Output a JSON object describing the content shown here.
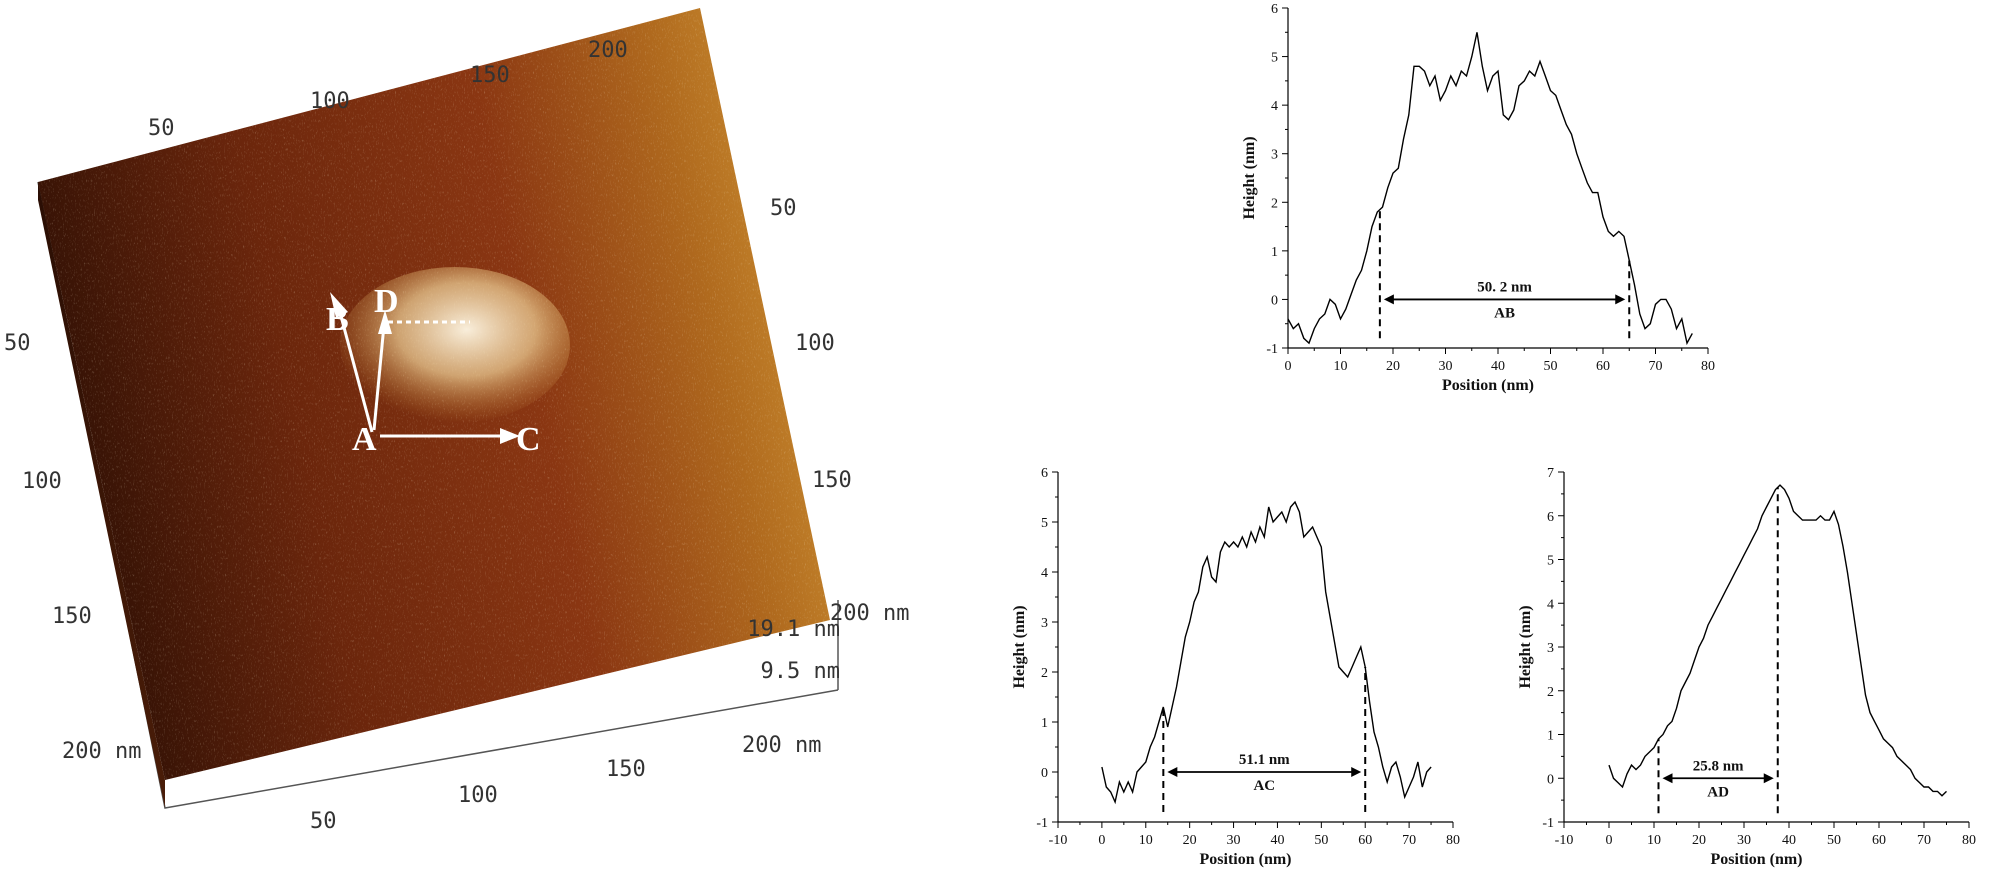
{
  "afm_image": {
    "top_ticks": [
      "50",
      "100",
      "150",
      "200"
    ],
    "right_ticks": [
      "50",
      "100",
      "150",
      "200 nm"
    ],
    "left_ticks": [
      "50",
      "100",
      "150",
      "200 nm"
    ],
    "bottom_ticks": [
      "50",
      "100",
      "150",
      "200 nm"
    ],
    "z_ticks": [
      "19.1 nm",
      "9.5 nm"
    ],
    "markers": {
      "A": "A",
      "B": "B",
      "C": "C",
      "D": "D"
    },
    "colors": {
      "dark": "#3a1406",
      "mid": "#7a2d0e",
      "light": "#c97f22",
      "bright": "#fff3d6"
    }
  },
  "chart_data": [
    {
      "type": "line",
      "name": "AB",
      "xlabel": "Position (nm)",
      "ylabel": "Height (nm)",
      "xlim": [
        0,
        80
      ],
      "ylim": [
        -1,
        6
      ],
      "xticks": [
        0,
        10,
        20,
        30,
        40,
        50,
        60,
        70,
        80
      ],
      "yticks": [
        -1,
        0,
        1,
        2,
        3,
        4,
        5,
        6
      ],
      "x": [
        0,
        1,
        2,
        3,
        4,
        5,
        6,
        7,
        8,
        9,
        10,
        11,
        12,
        13,
        14,
        15,
        16,
        17,
        18,
        19,
        20,
        21,
        22,
        23,
        24,
        25,
        26,
        27,
        28,
        29,
        30,
        31,
        32,
        33,
        34,
        35,
        36,
        37,
        38,
        39,
        40,
        41,
        42,
        43,
        44,
        45,
        46,
        47,
        48,
        49,
        50,
        51,
        52,
        53,
        54,
        55,
        56,
        57,
        58,
        59,
        60,
        61,
        62,
        63,
        64,
        65,
        66,
        67,
        68,
        69,
        70,
        71,
        72,
        73,
        74,
        75,
        76,
        77
      ],
      "y": [
        -0.4,
        -0.6,
        -0.5,
        -0.8,
        -0.9,
        -0.6,
        -0.4,
        -0.3,
        0.0,
        -0.1,
        -0.4,
        -0.2,
        0.1,
        0.4,
        0.6,
        1.0,
        1.5,
        1.8,
        1.9,
        2.3,
        2.6,
        2.7,
        3.3,
        3.8,
        4.8,
        4.8,
        4.7,
        4.4,
        4.6,
        4.1,
        4.3,
        4.6,
        4.4,
        4.7,
        4.6,
        5.0,
        5.5,
        4.8,
        4.3,
        4.6,
        4.7,
        3.8,
        3.7,
        3.9,
        4.4,
        4.5,
        4.7,
        4.6,
        4.9,
        4.6,
        4.3,
        4.2,
        3.9,
        3.6,
        3.4,
        3.0,
        2.7,
        2.4,
        2.2,
        2.2,
        1.7,
        1.4,
        1.3,
        1.4,
        1.3,
        0.8,
        0.3,
        -0.3,
        -0.6,
        -0.5,
        -0.1,
        0.0,
        0.0,
        -0.2,
        -0.6,
        -0.4,
        -0.9,
        -0.7
      ],
      "dim": {
        "from": 17.5,
        "to": 65,
        "label": "50. 2 nm",
        "tag": "AB"
      }
    },
    {
      "type": "line",
      "name": "AC",
      "xlabel": "Position (nm)",
      "ylabel": "Height (nm)",
      "xlim": [
        -10,
        80
      ],
      "ylim": [
        -1,
        6
      ],
      "xticks": [
        -10,
        0,
        10,
        20,
        30,
        40,
        50,
        60,
        70,
        80
      ],
      "yticks": [
        -1,
        0,
        1,
        2,
        3,
        4,
        5,
        6
      ],
      "x": [
        0,
        1,
        2,
        3,
        4,
        5,
        6,
        7,
        8,
        9,
        10,
        11,
        12,
        13,
        14,
        15,
        16,
        17,
        18,
        19,
        20,
        21,
        22,
        23,
        24,
        25,
        26,
        27,
        28,
        29,
        30,
        31,
        32,
        33,
        34,
        35,
        36,
        37,
        38,
        39,
        40,
        41,
        42,
        43,
        44,
        45,
        46,
        47,
        48,
        49,
        50,
        51,
        52,
        53,
        54,
        55,
        56,
        57,
        58,
        59,
        60,
        61,
        62,
        63,
        64,
        65,
        66,
        67,
        68,
        69,
        70,
        71,
        72,
        73,
        74,
        75
      ],
      "y": [
        0.1,
        -0.3,
        -0.4,
        -0.6,
        -0.2,
        -0.4,
        -0.2,
        -0.4,
        0.0,
        0.1,
        0.2,
        0.5,
        0.7,
        1.0,
        1.3,
        0.9,
        1.3,
        1.7,
        2.2,
        2.7,
        3.0,
        3.4,
        3.6,
        4.1,
        4.3,
        3.9,
        3.8,
        4.4,
        4.6,
        4.5,
        4.6,
        4.5,
        4.7,
        4.5,
        4.8,
        4.6,
        4.9,
        4.7,
        5.3,
        5.0,
        5.1,
        5.2,
        5.0,
        5.3,
        5.4,
        5.2,
        4.7,
        4.8,
        4.9,
        4.7,
        4.5,
        3.6,
        3.1,
        2.6,
        2.1,
        2.0,
        1.9,
        2.1,
        2.3,
        2.5,
        2.1,
        1.4,
        0.8,
        0.5,
        0.1,
        -0.2,
        0.1,
        0.2,
        -0.1,
        -0.5,
        -0.3,
        -0.1,
        0.2,
        -0.3,
        0.0,
        0.1
      ],
      "dim": {
        "from": 14,
        "to": 60,
        "label": "51.1 nm",
        "tag": "AC"
      }
    },
    {
      "type": "line",
      "name": "AD",
      "xlabel": "Position (nm)",
      "ylabel": "Height (nm)",
      "xlim": [
        -10,
        80
      ],
      "ylim": [
        -1,
        7
      ],
      "xticks": [
        -10,
        0,
        10,
        20,
        30,
        40,
        50,
        60,
        70,
        80
      ],
      "yticks": [
        -1,
        0,
        1,
        2,
        3,
        4,
        5,
        6,
        7
      ],
      "x": [
        0,
        1,
        2,
        3,
        4,
        5,
        6,
        7,
        8,
        9,
        10,
        11,
        12,
        13,
        14,
        15,
        16,
        17,
        18,
        19,
        20,
        21,
        22,
        23,
        24,
        25,
        26,
        27,
        28,
        29,
        30,
        31,
        32,
        33,
        34,
        35,
        36,
        37,
        38,
        39,
        40,
        41,
        42,
        43,
        44,
        45,
        46,
        47,
        48,
        49,
        50,
        51,
        52,
        53,
        54,
        55,
        56,
        57,
        58,
        59,
        60,
        61,
        62,
        63,
        64,
        65,
        66,
        67,
        68,
        69,
        70,
        71,
        72,
        73,
        74,
        75
      ],
      "y": [
        0.3,
        0.0,
        -0.1,
        -0.2,
        0.1,
        0.3,
        0.2,
        0.3,
        0.5,
        0.6,
        0.7,
        0.9,
        1.0,
        1.2,
        1.3,
        1.6,
        2.0,
        2.2,
        2.4,
        2.7,
        3.0,
        3.2,
        3.5,
        3.7,
        3.9,
        4.1,
        4.3,
        4.5,
        4.7,
        4.9,
        5.1,
        5.3,
        5.5,
        5.7,
        6.0,
        6.2,
        6.4,
        6.6,
        6.7,
        6.6,
        6.4,
        6.1,
        6.0,
        5.9,
        5.9,
        5.9,
        5.9,
        6.0,
        5.9,
        5.9,
        6.1,
        5.8,
        5.3,
        4.7,
        4.0,
        3.3,
        2.6,
        1.9,
        1.5,
        1.3,
        1.1,
        0.9,
        0.8,
        0.7,
        0.5,
        0.4,
        0.3,
        0.2,
        0.0,
        -0.1,
        -0.2,
        -0.2,
        -0.3,
        -0.3,
        -0.4,
        -0.3
      ],
      "dim": {
        "from": 11,
        "to": 37.5,
        "label": "25.8 nm",
        "tag": "AD"
      }
    }
  ]
}
